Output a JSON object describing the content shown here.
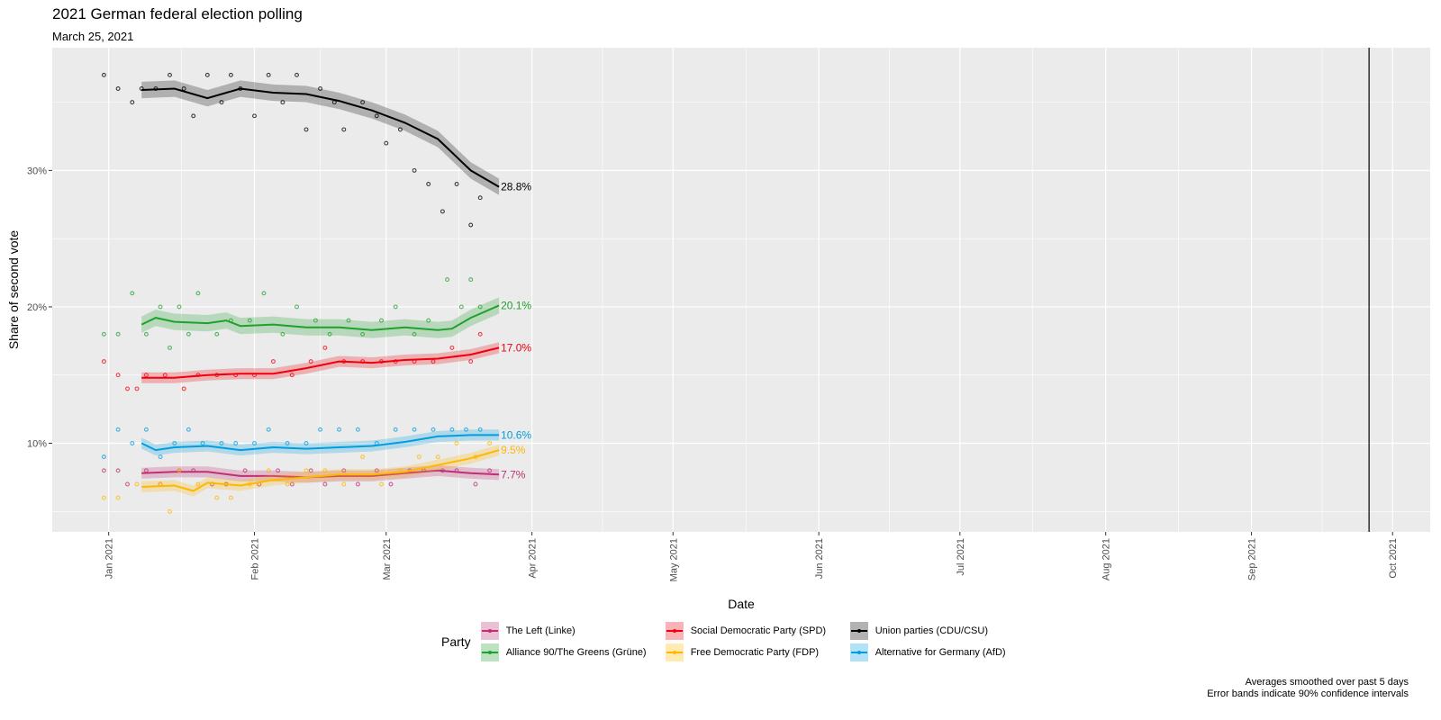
{
  "chart_data": {
    "type": "line",
    "title": "2021 German federal election polling",
    "subtitle": "March 25, 2021",
    "xlabel": "Date",
    "ylabel": "Share of second vote",
    "x_range": [
      "2020-12-20",
      "2021-10-09"
    ],
    "y_range": [
      3.5,
      39
    ],
    "x_ticks": [
      {
        "date": "2021-01-01",
        "label": "Jan 2021"
      },
      {
        "date": "2021-02-01",
        "label": "Feb 2021"
      },
      {
        "date": "2021-03-01",
        "label": "Mar 2021"
      },
      {
        "date": "2021-04-01",
        "label": "Apr 2021"
      },
      {
        "date": "2021-05-01",
        "label": "May 2021"
      },
      {
        "date": "2021-06-01",
        "label": "Jun 2021"
      },
      {
        "date": "2021-07-01",
        "label": "Jul 2021"
      },
      {
        "date": "2021-08-01",
        "label": "Aug 2021"
      },
      {
        "date": "2021-09-01",
        "label": "Sep 2021"
      },
      {
        "date": "2021-10-01",
        "label": "Oct 2021"
      }
    ],
    "y_ticks": [
      {
        "value": 10,
        "label": "10%"
      },
      {
        "value": 20,
        "label": "20%"
      },
      {
        "value": 30,
        "label": "30%"
      }
    ],
    "y_minor_gridlines": [
      5,
      15,
      25,
      35
    ],
    "election_day": "2021-09-26",
    "grid": true,
    "legend_title": "Party",
    "legend_position": "bottom",
    "series": [
      {
        "name": "The Left (Linke)",
        "color": "#be3075",
        "end_label": "7.7%",
        "trend": [
          [
            "2021-01-08",
            7.8
          ],
          [
            "2021-01-15",
            7.9
          ],
          [
            "2021-01-22",
            7.9
          ],
          [
            "2021-01-29",
            7.6
          ],
          [
            "2021-02-05",
            7.6
          ],
          [
            "2021-02-12",
            7.5
          ],
          [
            "2021-02-19",
            7.6
          ],
          [
            "2021-02-26",
            7.6
          ],
          [
            "2021-03-05",
            7.8
          ],
          [
            "2021-03-12",
            8.0
          ],
          [
            "2021-03-19",
            7.8
          ],
          [
            "2021-03-25",
            7.7
          ]
        ],
        "band": 0.4,
        "polls": [
          [
            "2020-12-31",
            8
          ],
          [
            "2021-01-03",
            8
          ],
          [
            "2021-01-05",
            7
          ],
          [
            "2021-01-09",
            8
          ],
          [
            "2021-01-12",
            7
          ],
          [
            "2021-01-16",
            8
          ],
          [
            "2021-01-19",
            8
          ],
          [
            "2021-01-23",
            7
          ],
          [
            "2021-01-26",
            7
          ],
          [
            "2021-01-30",
            8
          ],
          [
            "2021-02-02",
            7
          ],
          [
            "2021-02-06",
            8
          ],
          [
            "2021-02-09",
            7
          ],
          [
            "2021-02-13",
            8
          ],
          [
            "2021-02-16",
            7
          ],
          [
            "2021-02-20",
            8
          ],
          [
            "2021-02-23",
            7
          ],
          [
            "2021-02-27",
            8
          ],
          [
            "2021-03-02",
            7
          ],
          [
            "2021-03-06",
            8
          ],
          [
            "2021-03-09",
            8
          ],
          [
            "2021-03-13",
            8
          ],
          [
            "2021-03-16",
            8
          ],
          [
            "2021-03-20",
            7
          ],
          [
            "2021-03-23",
            8
          ]
        ]
      },
      {
        "name": "Alliance 90/The Greens (Grüne)",
        "color": "#1fa12d",
        "end_label": "20.1%",
        "trend": [
          [
            "2021-01-08",
            18.7
          ],
          [
            "2021-01-11",
            19.2
          ],
          [
            "2021-01-15",
            18.9
          ],
          [
            "2021-01-22",
            18.8
          ],
          [
            "2021-01-26",
            19.0
          ],
          [
            "2021-01-29",
            18.6
          ],
          [
            "2021-02-05",
            18.7
          ],
          [
            "2021-02-12",
            18.5
          ],
          [
            "2021-02-19",
            18.5
          ],
          [
            "2021-02-26",
            18.3
          ],
          [
            "2021-03-05",
            18.5
          ],
          [
            "2021-03-12",
            18.3
          ],
          [
            "2021-03-15",
            18.4
          ],
          [
            "2021-03-19",
            19.2
          ],
          [
            "2021-03-25",
            20.1
          ]
        ],
        "band": 0.6,
        "polls": [
          [
            "2020-12-31",
            18
          ],
          [
            "2021-01-03",
            18
          ],
          [
            "2021-01-06",
            21
          ],
          [
            "2021-01-09",
            18
          ],
          [
            "2021-01-12",
            20
          ],
          [
            "2021-01-14",
            17
          ],
          [
            "2021-01-16",
            20
          ],
          [
            "2021-01-18",
            18
          ],
          [
            "2021-01-20",
            21
          ],
          [
            "2021-01-24",
            18
          ],
          [
            "2021-01-27",
            19
          ],
          [
            "2021-01-31",
            19
          ],
          [
            "2021-02-03",
            21
          ],
          [
            "2021-02-07",
            18
          ],
          [
            "2021-02-10",
            20
          ],
          [
            "2021-02-14",
            19
          ],
          [
            "2021-02-17",
            18
          ],
          [
            "2021-02-21",
            19
          ],
          [
            "2021-02-24",
            18
          ],
          [
            "2021-02-28",
            19
          ],
          [
            "2021-03-03",
            20
          ],
          [
            "2021-03-07",
            18
          ],
          [
            "2021-03-10",
            19
          ],
          [
            "2021-03-14",
            22
          ],
          [
            "2021-03-17",
            20
          ],
          [
            "2021-03-19",
            22
          ],
          [
            "2021-03-21",
            20
          ]
        ]
      },
      {
        "name": "Social Democratic Party (SPD)",
        "color": "#f0000d",
        "end_label": "17.0%",
        "trend": [
          [
            "2021-01-08",
            14.8
          ],
          [
            "2021-01-15",
            14.8
          ],
          [
            "2021-01-22",
            15.0
          ],
          [
            "2021-01-29",
            15.1
          ],
          [
            "2021-02-05",
            15.1
          ],
          [
            "2021-02-12",
            15.5
          ],
          [
            "2021-02-19",
            16.0
          ],
          [
            "2021-02-26",
            15.9
          ],
          [
            "2021-03-05",
            16.1
          ],
          [
            "2021-03-12",
            16.2
          ],
          [
            "2021-03-19",
            16.5
          ],
          [
            "2021-03-25",
            17.0
          ]
        ],
        "band": 0.4,
        "polls": [
          [
            "2020-12-31",
            16
          ],
          [
            "2021-01-03",
            15
          ],
          [
            "2021-01-05",
            14
          ],
          [
            "2021-01-07",
            14
          ],
          [
            "2021-01-09",
            15
          ],
          [
            "2021-01-13",
            15
          ],
          [
            "2021-01-17",
            14
          ],
          [
            "2021-01-20",
            15
          ],
          [
            "2021-01-24",
            15
          ],
          [
            "2021-01-28",
            15
          ],
          [
            "2021-02-01",
            15
          ],
          [
            "2021-02-05",
            16
          ],
          [
            "2021-02-09",
            15
          ],
          [
            "2021-02-13",
            16
          ],
          [
            "2021-02-16",
            17
          ],
          [
            "2021-02-20",
            16
          ],
          [
            "2021-02-24",
            16
          ],
          [
            "2021-02-28",
            16
          ],
          [
            "2021-03-03",
            16
          ],
          [
            "2021-03-07",
            16
          ],
          [
            "2021-03-11",
            16
          ],
          [
            "2021-03-15",
            17
          ],
          [
            "2021-03-19",
            16
          ],
          [
            "2021-03-21",
            18
          ]
        ]
      },
      {
        "name": "Free Democratic Party (FDP)",
        "color": "#ffb800",
        "end_label": "9.5%",
        "trend": [
          [
            "2021-01-08",
            6.8
          ],
          [
            "2021-01-15",
            6.9
          ],
          [
            "2021-01-19",
            6.5
          ],
          [
            "2021-01-22",
            7.1
          ],
          [
            "2021-01-29",
            6.9
          ],
          [
            "2021-02-05",
            7.3
          ],
          [
            "2021-02-12",
            7.5
          ],
          [
            "2021-02-19",
            7.7
          ],
          [
            "2021-02-26",
            7.7
          ],
          [
            "2021-03-05",
            7.9
          ],
          [
            "2021-03-12",
            8.4
          ],
          [
            "2021-03-19",
            8.9
          ],
          [
            "2021-03-25",
            9.5
          ]
        ],
        "band": 0.4,
        "polls": [
          [
            "2020-12-31",
            6
          ],
          [
            "2021-01-03",
            6
          ],
          [
            "2021-01-07",
            7
          ],
          [
            "2021-01-12",
            7
          ],
          [
            "2021-01-14",
            5
          ],
          [
            "2021-01-16",
            8
          ],
          [
            "2021-01-20",
            7
          ],
          [
            "2021-01-24",
            6
          ],
          [
            "2021-01-27",
            6
          ],
          [
            "2021-01-31",
            7
          ],
          [
            "2021-02-04",
            8
          ],
          [
            "2021-02-08",
            7
          ],
          [
            "2021-02-12",
            8
          ],
          [
            "2021-02-16",
            8
          ],
          [
            "2021-02-20",
            7
          ],
          [
            "2021-02-24",
            9
          ],
          [
            "2021-02-28",
            7
          ],
          [
            "2021-03-04",
            8
          ],
          [
            "2021-03-08",
            9
          ],
          [
            "2021-03-12",
            9
          ],
          [
            "2021-03-16",
            10
          ],
          [
            "2021-03-20",
            9
          ],
          [
            "2021-03-23",
            10
          ]
        ]
      },
      {
        "name": "Union parties (CDU/CSU)",
        "color": "#000000",
        "end_label": "28.8%",
        "trend": [
          [
            "2021-01-08",
            35.9
          ],
          [
            "2021-01-15",
            36.0
          ],
          [
            "2021-01-22",
            35.3
          ],
          [
            "2021-01-29",
            36.0
          ],
          [
            "2021-02-05",
            35.7
          ],
          [
            "2021-02-12",
            35.6
          ],
          [
            "2021-02-19",
            35.1
          ],
          [
            "2021-02-26",
            34.4
          ],
          [
            "2021-03-05",
            33.5
          ],
          [
            "2021-03-12",
            32.3
          ],
          [
            "2021-03-19",
            30.0
          ],
          [
            "2021-03-25",
            28.8
          ]
        ],
        "band": 0.6,
        "polls": [
          [
            "2020-12-31",
            37
          ],
          [
            "2021-01-03",
            36
          ],
          [
            "2021-01-06",
            35
          ],
          [
            "2021-01-08",
            36
          ],
          [
            "2021-01-11",
            36
          ],
          [
            "2021-01-14",
            37
          ],
          [
            "2021-01-17",
            36
          ],
          [
            "2021-01-19",
            34
          ],
          [
            "2021-01-22",
            37
          ],
          [
            "2021-01-25",
            35
          ],
          [
            "2021-01-27",
            37
          ],
          [
            "2021-01-29",
            36
          ],
          [
            "2021-02-01",
            34
          ],
          [
            "2021-02-04",
            37
          ],
          [
            "2021-02-07",
            35
          ],
          [
            "2021-02-10",
            37
          ],
          [
            "2021-02-12",
            33
          ],
          [
            "2021-02-15",
            36
          ],
          [
            "2021-02-18",
            35
          ],
          [
            "2021-02-20",
            33
          ],
          [
            "2021-02-24",
            35
          ],
          [
            "2021-02-27",
            34
          ],
          [
            "2021-03-01",
            32
          ],
          [
            "2021-03-04",
            33
          ],
          [
            "2021-03-07",
            30
          ],
          [
            "2021-03-10",
            29
          ],
          [
            "2021-03-13",
            27
          ],
          [
            "2021-03-16",
            29
          ],
          [
            "2021-03-19",
            26
          ],
          [
            "2021-03-21",
            28
          ]
        ]
      },
      {
        "name": "Alternative for Germany (AfD)",
        "color": "#009ee0",
        "end_label": "10.6%",
        "trend": [
          [
            "2021-01-08",
            10.0
          ],
          [
            "2021-01-11",
            9.5
          ],
          [
            "2021-01-15",
            9.7
          ],
          [
            "2021-01-22",
            9.8
          ],
          [
            "2021-01-29",
            9.5
          ],
          [
            "2021-02-05",
            9.7
          ],
          [
            "2021-02-12",
            9.6
          ],
          [
            "2021-02-19",
            9.7
          ],
          [
            "2021-02-26",
            9.8
          ],
          [
            "2021-03-05",
            10.1
          ],
          [
            "2021-03-12",
            10.5
          ],
          [
            "2021-03-19",
            10.6
          ],
          [
            "2021-03-25",
            10.6
          ]
        ],
        "band": 0.4,
        "polls": [
          [
            "2020-12-31",
            9
          ],
          [
            "2021-01-03",
            11
          ],
          [
            "2021-01-06",
            10
          ],
          [
            "2021-01-09",
            11
          ],
          [
            "2021-01-12",
            9
          ],
          [
            "2021-01-15",
            10
          ],
          [
            "2021-01-18",
            11
          ],
          [
            "2021-01-21",
            10
          ],
          [
            "2021-01-25",
            10
          ],
          [
            "2021-01-28",
            10
          ],
          [
            "2021-02-01",
            10
          ],
          [
            "2021-02-04",
            11
          ],
          [
            "2021-02-08",
            10
          ],
          [
            "2021-02-12",
            10
          ],
          [
            "2021-02-15",
            11
          ],
          [
            "2021-02-19",
            11
          ],
          [
            "2021-02-23",
            11
          ],
          [
            "2021-02-27",
            10
          ],
          [
            "2021-03-03",
            11
          ],
          [
            "2021-03-07",
            11
          ],
          [
            "2021-03-11",
            11
          ],
          [
            "2021-03-15",
            11
          ],
          [
            "2021-03-18",
            11
          ],
          [
            "2021-03-21",
            11
          ]
        ]
      }
    ],
    "legend_order": [
      0,
      2,
      4,
      1,
      3,
      5
    ],
    "caption": [
      "Averages smoothed over past 5 days",
      "Error bands indicate 90% confidence intervals"
    ]
  }
}
